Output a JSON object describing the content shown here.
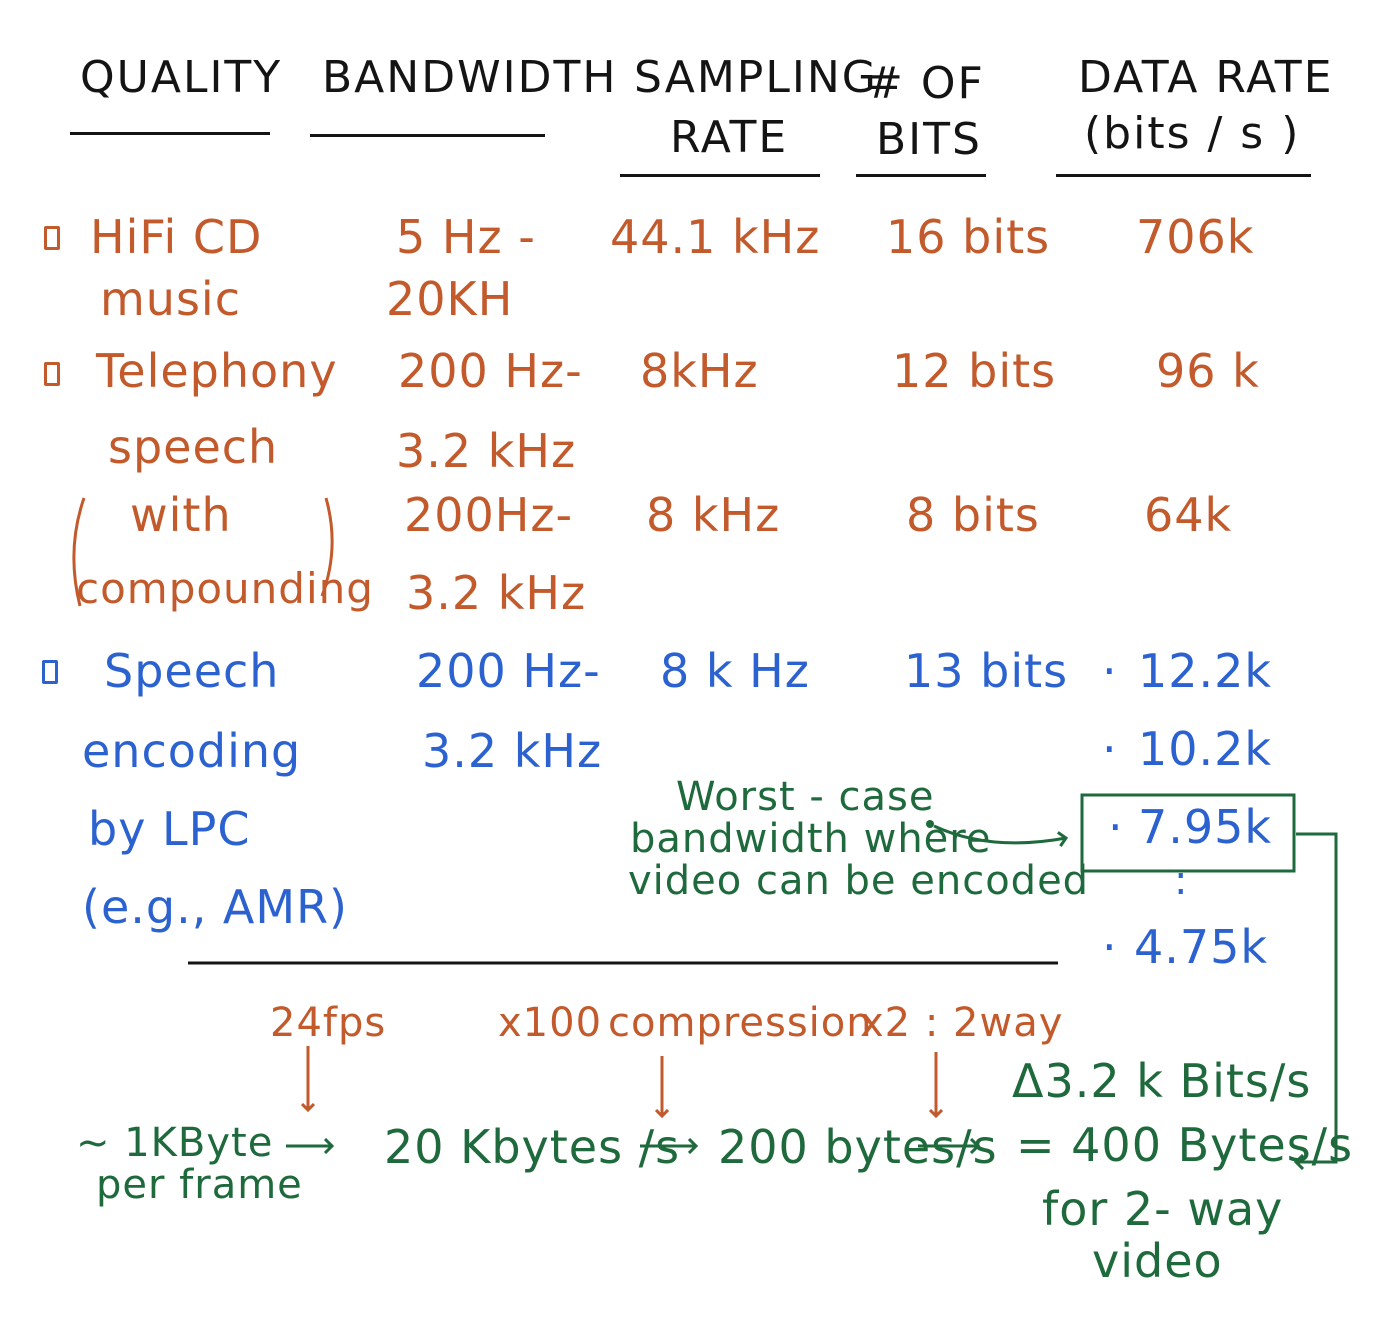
{
  "headers": {
    "quality": "QUALITY",
    "bandwidth": "BANDWIDTH",
    "sampling_rate_1": "SAMPLING",
    "sampling_rate_2": "RATE",
    "num_bits_1": "# OF",
    "num_bits_2": "BITS",
    "data_rate_1": "DATA RATE",
    "data_rate_2": "(bits / s )"
  },
  "rows": [
    {
      "quality": [
        "HiFi CD",
        "music"
      ],
      "bandwidth": [
        "5 Hz -",
        "20KH"
      ],
      "sampling_rate": "44.1 kHz",
      "bits": "16 bits",
      "data_rate": "706k"
    },
    {
      "quality": [
        "Telephony",
        "speech"
      ],
      "bandwidth": [
        "200 Hz-",
        "3.2 kHz"
      ],
      "sampling_rate": "8kHz",
      "bits": "12 bits",
      "data_rate": "96 k"
    },
    {
      "quality": [
        "with",
        "compounding"
      ],
      "bandwidth": [
        "200Hz-",
        "3.2 kHz"
      ],
      "sampling_rate": "8 kHz",
      "bits": "8 bits",
      "data_rate": "64k"
    },
    {
      "quality": [
        "Speech",
        "encoding",
        "by LPC",
        "(e.g., AMR)"
      ],
      "bandwidth": [
        "200 Hz-",
        "3.2 kHz"
      ],
      "sampling_rate": "8 k Hz",
      "bits": "13 bits",
      "data_rates": [
        "12.2k",
        "10.2k",
        "7.95k",
        "4.75k"
      ]
    }
  ],
  "annotation": {
    "line_1": "Worst - case",
    "line_2": "bandwidth where",
    "line_3": "video can be encoded"
  },
  "flow": {
    "start_1": "~ 1KByte",
    "start_2": "per frame",
    "step_1_label": "24fps",
    "step_1_result": "20 Kbytes /s",
    "step_2_label_a": "x100",
    "step_2_label_b": "compression",
    "step_2_result": "200 bytes/s",
    "step_3_label": "x2 : 2way",
    "result_1": "Δ3.2 k Bits/s",
    "result_2": "= 400 Bytes/s",
    "result_3": "for 2- way",
    "result_4": "video"
  },
  "colors": {
    "ink": "#141414",
    "orange": "#c25a2c",
    "blue": "#2b62d0",
    "green": "#1f6a3c"
  }
}
